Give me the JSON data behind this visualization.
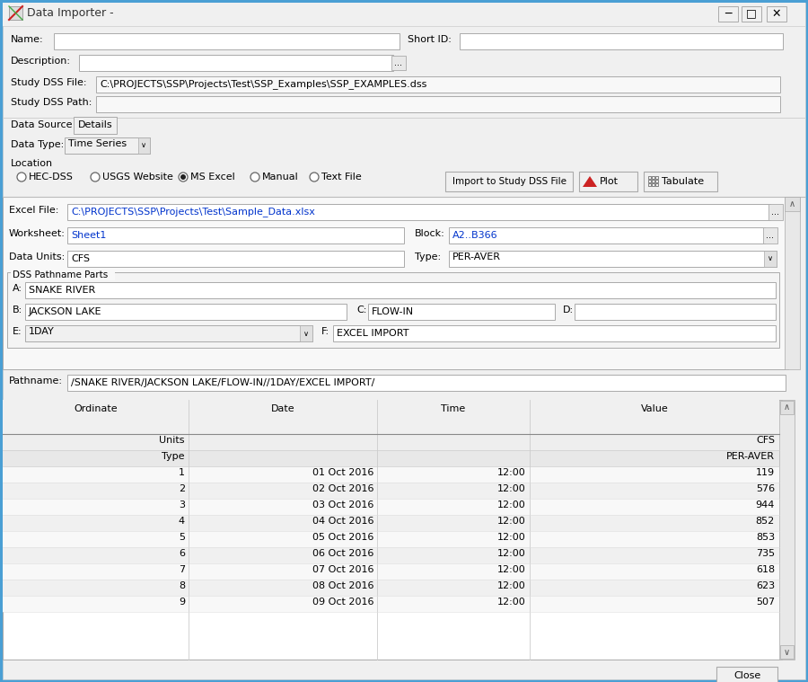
{
  "title_bar": "Data Importer -",
  "border_color": "#4a9fd4",
  "bg_color": "#f0f0f0",
  "white": "#ffffff",
  "study_dss_file": "C:\\PROJECTS\\SSP\\Projects\\Test\\SSP_Examples\\SSP_EXAMPLES.dss",
  "excel_file": "C:\\PROJECTS\\SSP\\Projects\\Test\\Sample_Data.xlsx",
  "worksheet": "Sheet1",
  "block": "A2..B366",
  "data_units": "CFS",
  "type_val": "PER-AVER",
  "dss_a": "SNAKE RIVER",
  "dss_b": "JACKSON LAKE",
  "dss_c": "FLOW-IN",
  "dss_d": "",
  "dss_e": "1DAY",
  "dss_f": "EXCEL IMPORT",
  "pathname": "/SNAKE RIVER/JACKSON LAKE/FLOW-IN//1DAY/EXCEL IMPORT/",
  "table_headers": [
    "Ordinate",
    "Date",
    "Time",
    "Value"
  ],
  "table_data": [
    [
      "1",
      "01 Oct 2016",
      "12:00",
      "119"
    ],
    [
      "2",
      "02 Oct 2016",
      "12:00",
      "576"
    ],
    [
      "3",
      "03 Oct 2016",
      "12:00",
      "944"
    ],
    [
      "4",
      "04 Oct 2016",
      "12:00",
      "852"
    ],
    [
      "5",
      "05 Oct 2016",
      "12:00",
      "853"
    ],
    [
      "6",
      "06 Oct 2016",
      "12:00",
      "735"
    ],
    [
      "7",
      "07 Oct 2016",
      "12:00",
      "618"
    ],
    [
      "8",
      "08 Oct 2016",
      "12:00",
      "623"
    ],
    [
      "9",
      "09 Oct 2016",
      "12:00",
      "507"
    ]
  ],
  "figw": 9.0,
  "figh": 7.59,
  "dpi": 100
}
